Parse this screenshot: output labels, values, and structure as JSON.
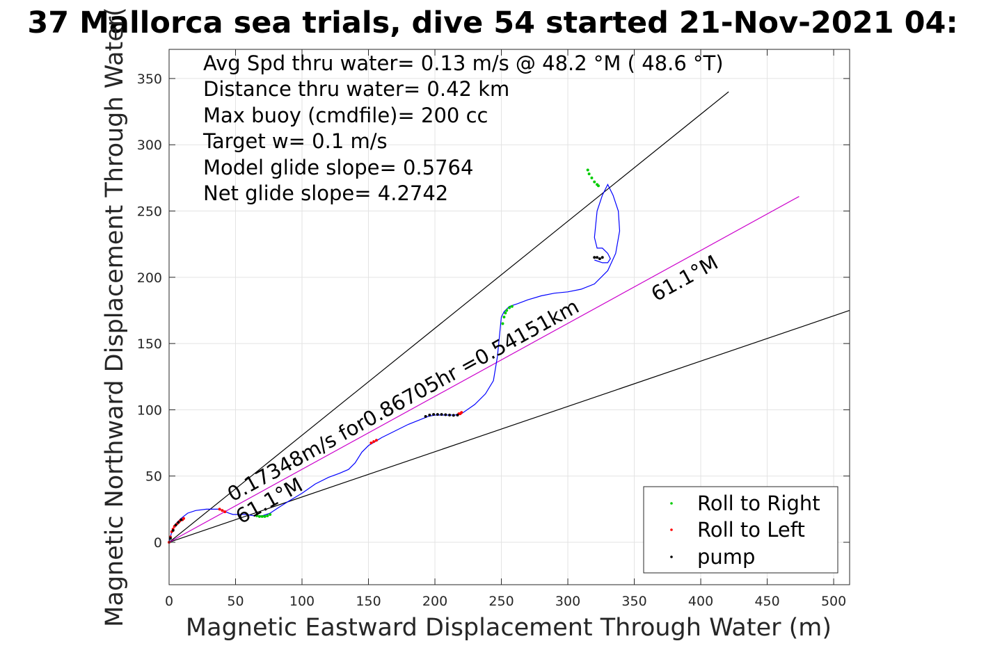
{
  "chart_data": {
    "type": "scatter",
    "title": "37 Mallorca sea trials, dive 54 started 21-Nov-2021 04:",
    "xlabel": "Magnetic Eastward Displacement Through Water (m)",
    "ylabel": "Magnetic Northward Displacement Through Water(",
    "xlim": [
      0,
      512
    ],
    "ylim": [
      -32,
      372
    ],
    "xticks": [
      0,
      50,
      100,
      150,
      200,
      250,
      300,
      350,
      400,
      450,
      500
    ],
    "yticks": [
      0,
      50,
      100,
      150,
      200,
      250,
      300,
      350
    ],
    "grid": true,
    "legend_position": "bottom-right",
    "stats_text": [
      "Avg Spd thru water=  0.13 m/s @  48.2 °M ( 48.6 °T)",
      "Distance thru water=  0.42 km",
      "Max buoy (cmdfile)= 200 cc",
      "Target w= 0.1 m/s",
      "Model glide slope= 0.5764",
      "Net glide slope= 4.2742"
    ],
    "annotations": {
      "track_label": "0.17348m/s for0.86705hr =0.54151km",
      "heading_label_upper": "61.1°M",
      "heading_label_lower": "61.1°M"
    },
    "reference_lines": [
      {
        "name": "upper-bound",
        "x": [
          0,
          421
        ],
        "y": [
          0,
          340
        ],
        "color": "#000000"
      },
      {
        "name": "lower-bound",
        "x": [
          0,
          512
        ],
        "y": [
          0,
          175
        ],
        "color": "#000000"
      },
      {
        "name": "net-heading",
        "x": [
          0,
          474
        ],
        "y": [
          0,
          261
        ],
        "color": "#cc00cc"
      }
    ],
    "series": [
      {
        "name": "track",
        "color": "#0000ff",
        "x": [
          0,
          2,
          5,
          9,
          14,
          20,
          28,
          38,
          45,
          48,
          52,
          58,
          64,
          70,
          76,
          82,
          90,
          100,
          110,
          120,
          128,
          135,
          140,
          145,
          150,
          155,
          160,
          170,
          180,
          190,
          195,
          200,
          205,
          210,
          215,
          220,
          230,
          238,
          244,
          247,
          249,
          250,
          252,
          256,
          262,
          270,
          280,
          290,
          300,
          310,
          320,
          330,
          336,
          339,
          338,
          334,
          330,
          326,
          322,
          320,
          322,
          326,
          330,
          332,
          330,
          326,
          320
        ],
        "y": [
          0,
          8,
          14,
          18,
          22,
          24,
          25,
          25,
          22,
          21,
          21,
          21,
          20,
          20,
          22,
          26,
          31,
          37,
          44,
          49,
          52,
          55,
          60,
          68,
          73,
          76,
          79,
          84,
          89,
          93,
          95,
          96,
          96,
          96,
          96,
          97,
          104,
          112,
          122,
          140,
          160,
          170,
          174,
          178,
          180,
          183,
          186,
          188,
          189,
          191,
          195,
          205,
          218,
          235,
          250,
          262,
          270,
          262,
          250,
          230,
          222,
          222,
          218,
          214,
          211,
          211,
          213
        ]
      },
      {
        "name": "Roll to Right",
        "color": "#00cc00",
        "x": [
          66,
          68,
          70,
          72,
          74,
          76,
          251,
          252,
          253,
          254,
          256,
          258,
          315,
          316,
          318,
          320,
          322,
          323
        ],
        "y": [
          20,
          19.5,
          19.5,
          19.5,
          20,
          21,
          165,
          170,
          173,
          175,
          177,
          178,
          281,
          278,
          275,
          272,
          270,
          269
        ]
      },
      {
        "name": "Roll to Left",
        "color": "#ff0000",
        "x": [
          0,
          1,
          2,
          3,
          4,
          6,
          8,
          10,
          11,
          38,
          40,
          42,
          152,
          154,
          156,
          218,
          219,
          220
        ],
        "y": [
          0,
          4,
          8,
          10,
          12,
          14,
          16,
          17,
          18,
          25,
          24,
          23,
          75,
          76,
          77,
          97,
          97,
          98
        ]
      },
      {
        "name": "pump",
        "color": "#000000",
        "x": [
          1,
          3,
          5,
          7,
          9,
          193,
          196,
          199,
          202,
          205,
          208,
          211,
          214,
          217,
          320,
          322,
          324,
          326
        ],
        "y": [
          3,
          9,
          13,
          15,
          17,
          95,
          96,
          96.5,
          96.5,
          96.5,
          96.3,
          96,
          95.8,
          96,
          215,
          215,
          214,
          215
        ]
      }
    ]
  }
}
